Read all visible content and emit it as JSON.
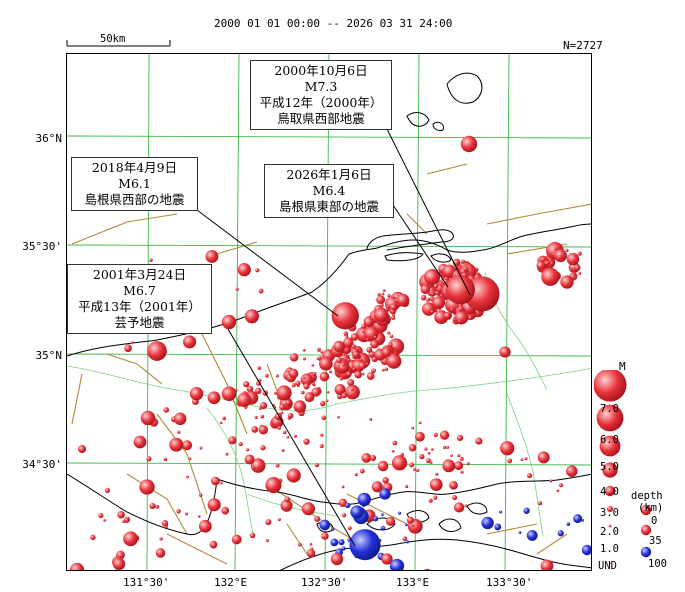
{
  "header": {
    "period": "2000 01 01 00:00 -- 2026 03 31 24:00",
    "scale_label": "50km",
    "count": "N=2727"
  },
  "axes": {
    "lat_labels": [
      "36°N",
      "35°30'",
      "35°N",
      "34°30'"
    ],
    "lon_labels": [
      "131°30'",
      "132°E",
      "132°30'",
      "133°E",
      "133°30'"
    ]
  },
  "callouts": [
    {
      "lines": [
        "2000年10月6日",
        "M7.3",
        "平成12年（2000年）",
        "鳥取県西部地震"
      ]
    },
    {
      "lines": [
        "2018年4月9日",
        "M6.1",
        "島根県西部の地震"
      ]
    },
    {
      "lines": [
        "2026年1月6日",
        "M6.4",
        "島根県東部の地震"
      ]
    },
    {
      "lines": [
        "2001年3月24日",
        "M6.7",
        "平成13年（2001年）",
        "芸予地震"
      ]
    }
  ],
  "legend": {
    "magnitude_title": "M",
    "magnitudes": [
      "7.0",
      "6.0",
      "5.0",
      "4.0",
      "3.0",
      "2.0",
      "1.0"
    ],
    "depth_title_1": "depth",
    "depth_title_2": "(km)",
    "depths": [
      "0",
      "35",
      "100"
    ],
    "und_label": "UND"
  },
  "colors": {
    "shallow": "#e8323a",
    "deep": "#2430d8",
    "grid": "#3cb84a",
    "fault": "#b08a3a",
    "border": "#7fcf8a",
    "coast": "#000000"
  },
  "events": [
    {
      "name": "tottori-west-2000",
      "lat": 35.28,
      "lon": 133.35,
      "mag": 7.3,
      "depth": "shallow"
    },
    {
      "name": "shimane-east-2026",
      "lat": 35.3,
      "lon": 133.23,
      "mag": 6.4,
      "depth": "shallow"
    },
    {
      "name": "shimane-west-2018",
      "lat": 35.18,
      "lon": 132.59,
      "mag": 6.1,
      "depth": "shallow"
    },
    {
      "name": "geiyo-2001",
      "lat": 34.13,
      "lon": 132.7,
      "mag": 6.7,
      "depth": "deep"
    }
  ]
}
